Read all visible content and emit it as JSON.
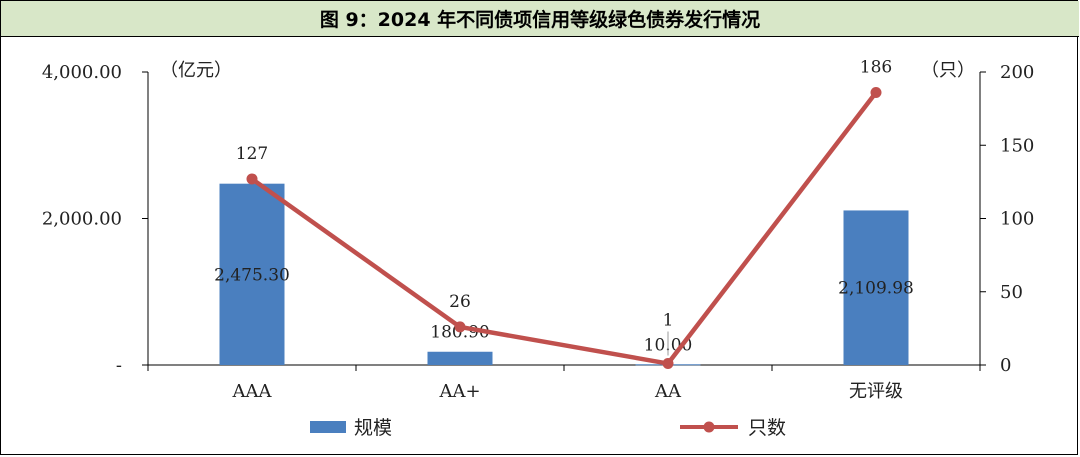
{
  "title": "图 9：2024 年不同债项信用等级绿色债券发行情况",
  "chart_data": {
    "type": "bar",
    "categories": [
      "AAA",
      "AA+",
      "AA",
      "无评级"
    ],
    "series": [
      {
        "name": "规模",
        "type": "bar",
        "axis": "left",
        "values": [
          2475.3,
          180.9,
          10.0,
          2109.98
        ],
        "labels": [
          "2,475.30",
          "180.90",
          "10.00",
          "2,109.98"
        ],
        "color": "#4a7fbf"
      },
      {
        "name": "只数",
        "type": "line",
        "axis": "right",
        "values": [
          127,
          26,
          1,
          186
        ],
        "labels": [
          "127",
          "26",
          "1",
          "186"
        ],
        "color": "#c0504d"
      }
    ],
    "y_left": {
      "unit": "（亿元）",
      "ylim": [
        0,
        4000
      ],
      "ticks": [
        "-",
        "2,000.00",
        "4,000.00"
      ],
      "tick_values": [
        0,
        2000,
        4000
      ]
    },
    "y_right": {
      "unit": "（只）",
      "ylim": [
        0,
        200
      ],
      "ticks": [
        "0",
        "50",
        "100",
        "150",
        "200"
      ],
      "tick_values": [
        0,
        50,
        100,
        150,
        200
      ]
    },
    "legend_position": "bottom",
    "grid": false
  }
}
